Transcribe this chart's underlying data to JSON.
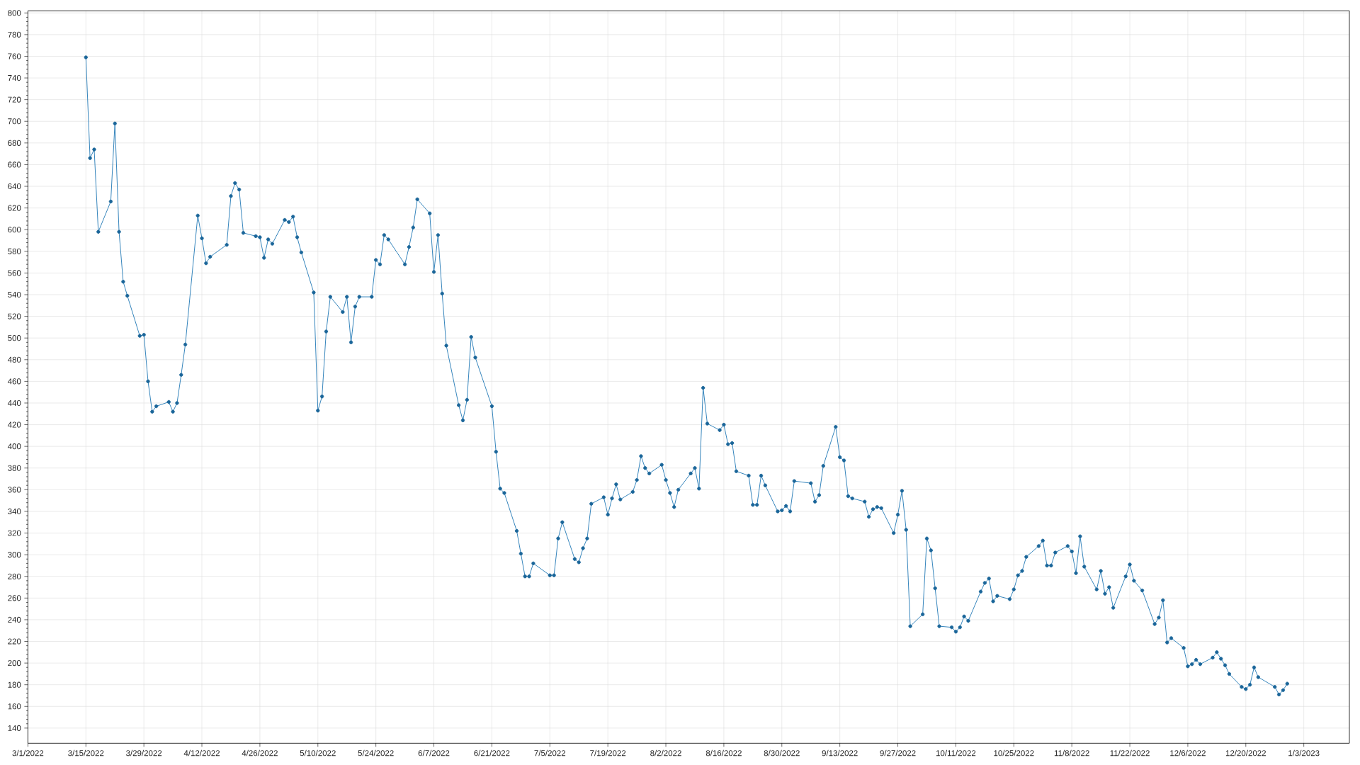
{
  "chart_data": {
    "type": "line",
    "x": [
      "2022-03-15",
      "2022-03-16",
      "2022-03-17",
      "2022-03-18",
      "2022-03-21",
      "2022-03-22",
      "2022-03-23",
      "2022-03-24",
      "2022-03-25",
      "2022-03-28",
      "2022-03-29",
      "2022-03-30",
      "2022-03-31",
      "2022-04-01",
      "2022-04-04",
      "2022-04-05",
      "2022-04-06",
      "2022-04-07",
      "2022-04-08",
      "2022-04-11",
      "2022-04-12",
      "2022-04-13",
      "2022-04-14",
      "2022-04-18",
      "2022-04-19",
      "2022-04-20",
      "2022-04-21",
      "2022-04-22",
      "2022-04-25",
      "2022-04-26",
      "2022-04-27",
      "2022-04-28",
      "2022-04-29",
      "2022-05-02",
      "2022-05-03",
      "2022-05-04",
      "2022-05-05",
      "2022-05-06",
      "2022-05-09",
      "2022-05-10",
      "2022-05-11",
      "2022-05-12",
      "2022-05-13",
      "2022-05-16",
      "2022-05-17",
      "2022-05-18",
      "2022-05-19",
      "2022-05-20",
      "2022-05-23",
      "2022-05-24",
      "2022-05-25",
      "2022-05-26",
      "2022-05-27",
      "2022-05-31",
      "2022-06-01",
      "2022-06-02",
      "2022-06-03",
      "2022-06-06",
      "2022-06-07",
      "2022-06-08",
      "2022-06-09",
      "2022-06-10",
      "2022-06-13",
      "2022-06-14",
      "2022-06-15",
      "2022-06-16",
      "2022-06-17",
      "2022-06-21",
      "2022-06-22",
      "2022-06-23",
      "2022-06-24",
      "2022-06-27",
      "2022-06-28",
      "2022-06-29",
      "2022-06-30",
      "2022-07-01",
      "2022-07-05",
      "2022-07-06",
      "2022-07-07",
      "2022-07-08",
      "2022-07-11",
      "2022-07-12",
      "2022-07-13",
      "2022-07-14",
      "2022-07-15",
      "2022-07-18",
      "2022-07-19",
      "2022-07-20",
      "2022-07-21",
      "2022-07-22",
      "2022-07-25",
      "2022-07-26",
      "2022-07-27",
      "2022-07-28",
      "2022-07-29",
      "2022-08-01",
      "2022-08-02",
      "2022-08-03",
      "2022-08-04",
      "2022-08-05",
      "2022-08-08",
      "2022-08-09",
      "2022-08-10",
      "2022-08-11",
      "2022-08-12",
      "2022-08-15",
      "2022-08-16",
      "2022-08-17",
      "2022-08-18",
      "2022-08-19",
      "2022-08-22",
      "2022-08-23",
      "2022-08-24",
      "2022-08-25",
      "2022-08-26",
      "2022-08-29",
      "2022-08-30",
      "2022-08-31",
      "2022-09-01",
      "2022-09-02",
      "2022-09-06",
      "2022-09-07",
      "2022-09-08",
      "2022-09-09",
      "2022-09-12",
      "2022-09-13",
      "2022-09-14",
      "2022-09-15",
      "2022-09-16",
      "2022-09-19",
      "2022-09-20",
      "2022-09-21",
      "2022-09-22",
      "2022-09-23",
      "2022-09-26",
      "2022-09-27",
      "2022-09-28",
      "2022-09-29",
      "2022-09-30",
      "2022-10-03",
      "2022-10-04",
      "2022-10-05",
      "2022-10-06",
      "2022-10-07",
      "2022-10-10",
      "2022-10-11",
      "2022-10-12",
      "2022-10-13",
      "2022-10-14",
      "2022-10-17",
      "2022-10-18",
      "2022-10-19",
      "2022-10-20",
      "2022-10-21",
      "2022-10-24",
      "2022-10-25",
      "2022-10-26",
      "2022-10-27",
      "2022-10-28",
      "2022-10-31",
      "2022-11-01",
      "2022-11-02",
      "2022-11-03",
      "2022-11-04",
      "2022-11-07",
      "2022-11-08",
      "2022-11-09",
      "2022-11-10",
      "2022-11-11",
      "2022-11-14",
      "2022-11-15",
      "2022-11-16",
      "2022-11-17",
      "2022-11-18",
      "2022-11-21",
      "2022-11-22",
      "2022-11-23",
      "2022-11-25",
      "2022-11-28",
      "2022-11-29",
      "2022-11-30",
      "2022-12-01",
      "2022-12-02",
      "2022-12-05",
      "2022-12-06",
      "2022-12-07",
      "2022-12-08",
      "2022-12-09",
      "2022-12-12",
      "2022-12-13",
      "2022-12-14",
      "2022-12-15",
      "2022-12-16",
      "2022-12-19",
      "2022-12-20",
      "2022-12-21",
      "2022-12-22",
      "2022-12-23",
      "2022-12-27",
      "2022-12-28",
      "2022-12-29",
      "2022-12-30"
    ],
    "values": [
      759,
      666,
      674,
      598,
      626,
      698,
      598,
      552,
      539,
      502,
      503,
      460,
      432,
      437,
      441,
      432,
      440,
      466,
      494,
      613,
      592,
      569,
      575,
      586,
      631,
      643,
      637,
      597,
      594,
      593,
      574,
      591,
      587,
      609,
      607,
      612,
      593,
      579,
      542,
      433,
      446,
      506,
      538,
      524,
      538,
      496,
      529,
      538,
      538,
      572,
      568,
      595,
      591,
      568,
      584,
      602,
      628,
      615,
      561,
      595,
      541,
      493,
      438,
      424,
      443,
      501,
      482,
      437,
      395,
      361,
      357,
      322,
      301,
      280,
      280,
      292,
      281,
      281,
      315,
      330,
      296,
      293,
      306,
      315,
      347,
      353,
      337,
      352,
      365,
      351,
      358,
      369,
      391,
      380,
      375,
      383,
      369,
      357,
      344,
      360,
      375,
      380,
      361,
      454,
      421,
      415,
      420,
      402,
      403,
      377,
      373,
      346,
      346,
      373,
      364,
      340,
      341,
      345,
      340,
      368,
      366,
      349,
      355,
      382,
      418,
      390,
      387,
      354,
      352,
      349,
      335,
      342,
      344,
      343,
      320,
      337,
      359,
      323,
      234,
      245,
      315,
      304,
      269,
      234,
      233,
      229,
      233,
      243,
      239,
      266,
      274,
      278,
      257,
      262,
      259,
      268,
      281,
      285,
      298,
      308,
      313,
      290,
      290,
      302,
      308,
      303,
      283,
      317,
      289,
      268,
      285,
      264,
      270,
      251,
      280,
      291,
      276,
      267,
      236,
      242,
      258,
      219,
      223,
      214,
      197,
      199,
      203,
      199,
      205,
      210,
      204,
      198,
      190,
      178,
      176,
      180,
      196,
      187,
      178,
      171,
      175,
      181
    ],
    "color": "#1f77b4",
    "xlim": [
      "2022-03-01",
      "2023-01-14"
    ],
    "xticks": [
      {
        "value": "2022-03-01",
        "label": "3/1/2022"
      },
      {
        "value": "2022-03-15",
        "label": "3/15/2022"
      },
      {
        "value": "2022-03-29",
        "label": "3/29/2022"
      },
      {
        "value": "2022-04-12",
        "label": "4/12/2022"
      },
      {
        "value": "2022-04-26",
        "label": "4/26/2022"
      },
      {
        "value": "2022-05-10",
        "label": "5/10/2022"
      },
      {
        "value": "2022-05-24",
        "label": "5/24/2022"
      },
      {
        "value": "2022-06-07",
        "label": "6/7/2022"
      },
      {
        "value": "2022-06-21",
        "label": "6/21/2022"
      },
      {
        "value": "2022-07-05",
        "label": "7/5/2022"
      },
      {
        "value": "2022-07-19",
        "label": "7/19/2022"
      },
      {
        "value": "2022-08-02",
        "label": "8/2/2022"
      },
      {
        "value": "2022-08-16",
        "label": "8/16/2022"
      },
      {
        "value": "2022-08-30",
        "label": "8/30/2022"
      },
      {
        "value": "2022-09-13",
        "label": "9/13/2022"
      },
      {
        "value": "2022-09-27",
        "label": "9/27/2022"
      },
      {
        "value": "2022-10-11",
        "label": "10/11/2022"
      },
      {
        "value": "2022-10-25",
        "label": "10/25/2022"
      },
      {
        "value": "2022-11-08",
        "label": "11/8/2022"
      },
      {
        "value": "2022-11-22",
        "label": "11/22/2022"
      },
      {
        "value": "2022-12-06",
        "label": "12/6/2022"
      },
      {
        "value": "2022-12-20",
        "label": "12/20/2022"
      },
      {
        "value": "2023-01-03",
        "label": "1/3/2023"
      }
    ],
    "ylim": [
      126,
      802
    ],
    "yticks": [
      140,
      160,
      180,
      200,
      220,
      240,
      260,
      280,
      300,
      320,
      340,
      360,
      380,
      400,
      420,
      440,
      460,
      480,
      500,
      520,
      540,
      560,
      580,
      600,
      620,
      640,
      660,
      680,
      700,
      720,
      740,
      760,
      780,
      800
    ],
    "grid": true,
    "marker": "circle",
    "line_style": "solid"
  }
}
